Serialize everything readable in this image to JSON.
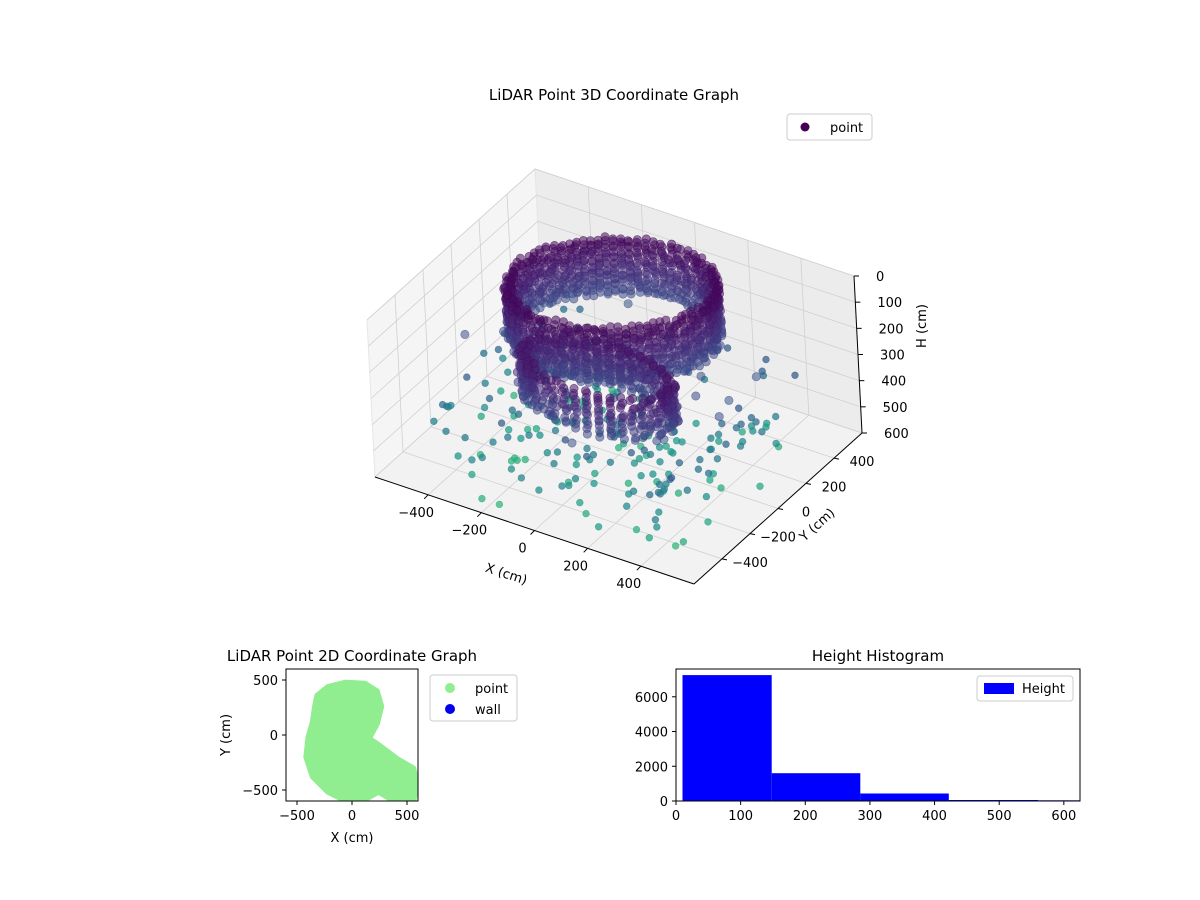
{
  "chart_data": [
    {
      "type": "scatter3d",
      "title": "LiDAR Point 3D Coordinate Graph",
      "xlabel": "X (cm)",
      "ylabel": "Y (cm)",
      "zlabel": "H (cm)",
      "xlim": [
        -600,
        600
      ],
      "ylim": [
        -600,
        600
      ],
      "zlim": [
        0,
        600
      ],
      "z_inverted": true,
      "x_ticks": [
        -400,
        -200,
        0,
        200,
        400
      ],
      "y_ticks": [
        -400,
        -200,
        0,
        200,
        400
      ],
      "z_ticks": [
        0,
        100,
        200,
        300,
        400,
        500,
        600
      ],
      "colormap": "viridis",
      "grid": true,
      "legend": {
        "entries": [
          "point"
        ],
        "placement": "upper-right"
      },
      "series": [
        {
          "name": "point",
          "color": "#440154"
        }
      ]
    },
    {
      "type": "scatter",
      "title": "LiDAR Point 2D Coordinate Graph",
      "xlabel": "X (cm)",
      "ylabel": "Y (cm)",
      "xlim": [
        -600,
        600
      ],
      "ylim": [
        -600,
        600
      ],
      "x_ticks": [
        -500,
        0,
        500
      ],
      "y_ticks": [
        -500,
        0,
        500
      ],
      "legend": {
        "entries": [
          "point",
          "wall"
        ],
        "placement": "outside-right"
      },
      "series": [
        {
          "name": "point",
          "color": "#90ee90"
        },
        {
          "name": "wall",
          "color": "#0000ee"
        }
      ]
    },
    {
      "type": "bar",
      "title": "Height Histogram",
      "xlim": [
        0,
        625
      ],
      "ylim": [
        0,
        7600
      ],
      "x_ticks": [
        0,
        100,
        200,
        300,
        400,
        500,
        600
      ],
      "y_ticks": [
        0,
        2000,
        4000,
        6000
      ],
      "bins": [
        {
          "start": 10,
          "end": 148,
          "count": 7250
        },
        {
          "start": 148,
          "end": 285,
          "count": 1600
        },
        {
          "start": 285,
          "end": 422,
          "count": 430
        },
        {
          "start": 422,
          "end": 560,
          "count": 60
        },
        {
          "start": 560,
          "end": 625,
          "count": 40
        }
      ],
      "color": "#0000ff",
      "legend": {
        "entries": [
          "Height"
        ],
        "placement": "upper-right"
      },
      "series": [
        {
          "name": "Height",
          "color": "#0000ff"
        }
      ]
    }
  ]
}
